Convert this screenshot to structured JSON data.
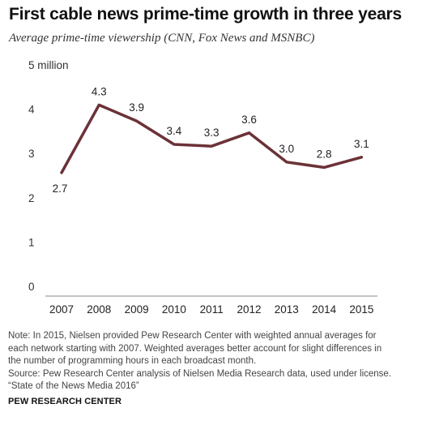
{
  "title": "First cable news prime-time growth in three years",
  "subtitle": "Average prime-time viewership (CNN, Fox News and MSNBC)",
  "note_lines": [
    "Note: In 2015, Nielsen provided Pew Research Center with weighted annual averages for",
    "each network starting with 2007. Weighted averages better account for slight differences in",
    "the number of programming hours in each broadcast month."
  ],
  "source_lines": [
    "Source: Pew Research Center analysis of Nielsen Media Research data, used under license.",
    "“State of the News Media 2016”"
  ],
  "footer": "PEW RESEARCH CENTER",
  "chart_data": {
    "type": "line",
    "x": [
      "2007",
      "2008",
      "2009",
      "2010",
      "2011",
      "2012",
      "2013",
      "2014",
      "2015"
    ],
    "series": [
      {
        "values": [
          2.73,
          4.26,
          3.9,
          3.37,
          3.33,
          3.63,
          2.97,
          2.85,
          3.08
        ],
        "labels": [
          "2.7",
          "4.3",
          "3.9",
          "3.4",
          "3.3",
          "3.6",
          "3.0",
          "2.8",
          "3.1"
        ],
        "color": "#6b3237"
      }
    ],
    "yticks": [
      {
        "value": 0,
        "label": "0"
      },
      {
        "value": 1,
        "label": "1"
      },
      {
        "value": 2,
        "label": "2"
      },
      {
        "value": 3,
        "label": "3"
      },
      {
        "value": 4,
        "label": "4"
      },
      {
        "value": 5,
        "label": "5 million"
      }
    ],
    "ylim": [
      0,
      5
    ],
    "grid": false,
    "legend": "none",
    "axis_color": "#888888"
  }
}
